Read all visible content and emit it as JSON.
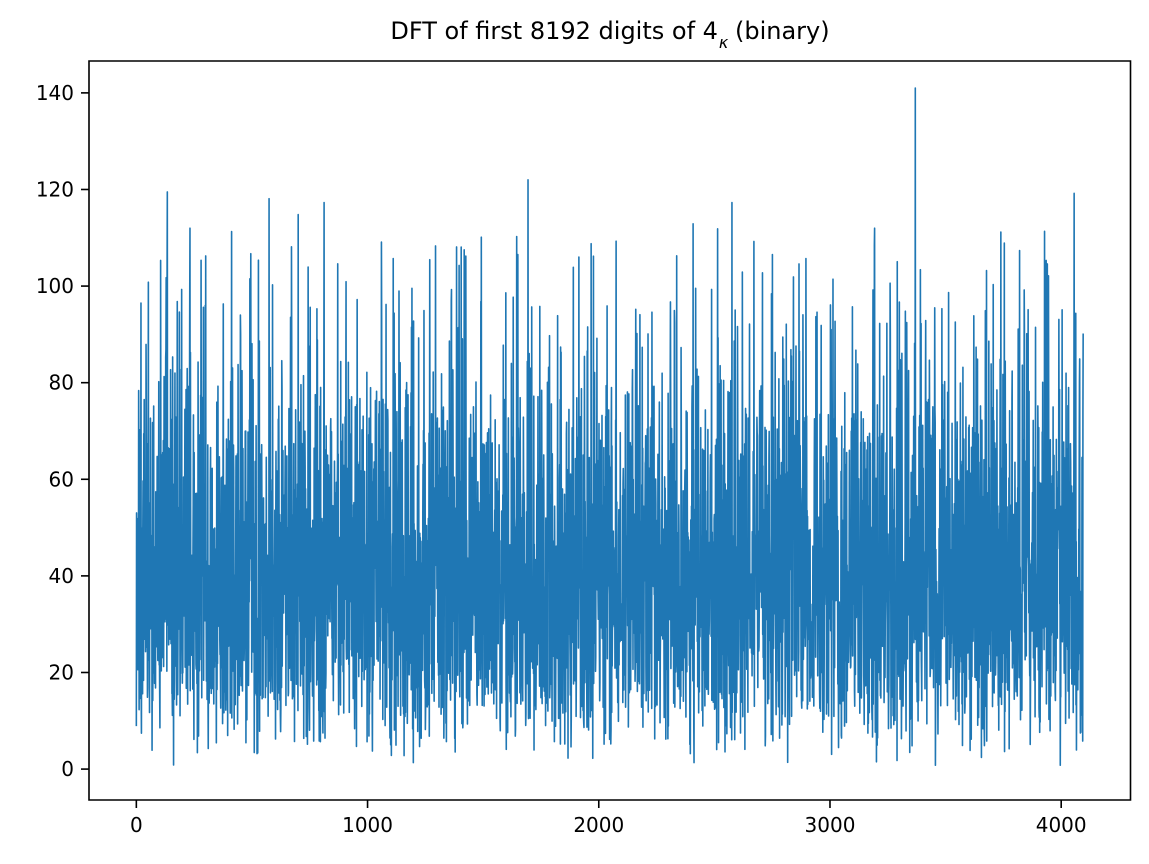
{
  "window": {
    "background": "#ffffff"
  },
  "figure": {
    "title_prefix": "DFT of first 8192 digits of 4",
    "title_sub": "κ",
    "title_suffix": " (binary)"
  },
  "chart_data": {
    "type": "line",
    "title": "DFT of first 8192 digits of 4κ (binary)",
    "xlabel": "",
    "ylabel": "",
    "legend": null,
    "grid": false,
    "x_ticks": [
      0,
      1000,
      2000,
      3000,
      4000
    ],
    "y_ticks": [
      0,
      20,
      40,
      60,
      80,
      100,
      120,
      140
    ],
    "xlim": [
      -204.75,
      4299.75
    ],
    "ylim": [
      -6.4,
      146.6
    ],
    "n_points": 4096,
    "x_start": 0,
    "x_end": 4095,
    "line_color": "#1f77b4",
    "line_width": 1.6,
    "axis_color": "#000000",
    "tick_font_size": 20,
    "tick_length": 8,
    "background_model": {
      "distribution": "rayleigh",
      "sigma": 32,
      "seed": 8192,
      "value_min": 0.8,
      "value_soft_knee": 105,
      "value_max": 112,
      "description": "Noise-like DFT magnitude spectrum of a binary digit sequence: dense band ≈5–100, occasional dips to ≈1; listed peaks are the spikes readable from the plot"
    },
    "peaks": [
      {
        "x": 20,
        "y": 96.5
      },
      {
        "x": 52,
        "y": 100.8
      },
      {
        "x": 105,
        "y": 105.3
      },
      {
        "x": 134,
        "y": 119.5
      },
      {
        "x": 196,
        "y": 99.3
      },
      {
        "x": 290,
        "y": 88.5
      },
      {
        "x": 376,
        "y": 96.3
      },
      {
        "x": 412,
        "y": 111.3
      },
      {
        "x": 450,
        "y": 94.0
      },
      {
        "x": 491,
        "y": 101.5
      },
      {
        "x": 574,
        "y": 118.1
      },
      {
        "x": 700,
        "y": 114.8
      },
      {
        "x": 812,
        "y": 117.3
      },
      {
        "x": 871,
        "y": 104.6
      },
      {
        "x": 907,
        "y": 100.9
      },
      {
        "x": 955,
        "y": 97.2
      },
      {
        "x": 1080,
        "y": 96.2
      },
      {
        "x": 1190,
        "y": 91.5
      },
      {
        "x": 1385,
        "y": 108.1
      },
      {
        "x": 1418,
        "y": 107.5
      },
      {
        "x": 1490,
        "y": 96.8
      },
      {
        "x": 1598,
        "y": 98.6
      },
      {
        "x": 1694,
        "y": 122.0
      },
      {
        "x": 1745,
        "y": 95.8
      },
      {
        "x": 1890,
        "y": 103.9
      },
      {
        "x": 1977,
        "y": 106.2
      },
      {
        "x": 2075,
        "y": 109.3
      },
      {
        "x": 2160,
        "y": 95.2
      },
      {
        "x": 2230,
        "y": 94.6
      },
      {
        "x": 2408,
        "y": 112.9
      },
      {
        "x": 2488,
        "y": 99.3
      },
      {
        "x": 2576,
        "y": 117.3
      },
      {
        "x": 2621,
        "y": 102.9
      },
      {
        "x": 2747,
        "y": 98.4
      },
      {
        "x": 2842,
        "y": 101.9
      },
      {
        "x": 2896,
        "y": 105.7
      },
      {
        "x": 3002,
        "y": 96.1
      },
      {
        "x": 3097,
        "y": 95.7
      },
      {
        "x": 3192,
        "y": 108.4
      },
      {
        "x": 3260,
        "y": 100.6
      },
      {
        "x": 3300,
        "y": 96.7
      },
      {
        "x": 3369,
        "y": 141.0
      },
      {
        "x": 3391,
        "y": 103.4
      },
      {
        "x": 3672,
        "y": 94.9
      },
      {
        "x": 3754,
        "y": 108.9
      },
      {
        "x": 3840,
        "y": 99.2
      },
      {
        "x": 3935,
        "y": 105.3
      },
      {
        "x": 4004,
        "y": 95.1
      },
      {
        "x": 4056,
        "y": 119.2
      }
    ]
  }
}
